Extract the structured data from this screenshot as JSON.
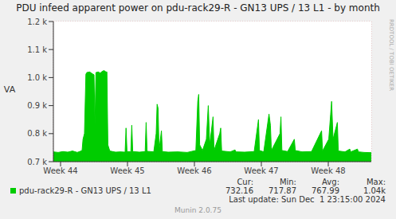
{
  "chart_data": {
    "type": "area",
    "title": "PDU infeed apparent power on pdu-rack29-R - GN13 UPS / 13 L1 - by month",
    "y_label": "VA",
    "x": [
      0,
      0.5,
      1,
      1.5,
      2,
      2.5,
      2.8,
      3.0,
      3.1,
      3.25,
      3.4,
      3.5,
      3.8,
      4.0,
      4.15,
      4.25,
      4.35,
      4.45,
      4.7,
      4.9,
      5.1,
      5.3,
      5.5,
      5.6,
      5.7,
      5.9,
      6.5,
      7,
      7.5,
      7.6,
      7.7,
      8.1,
      8.2,
      8.3,
      9,
      9.6,
      9.7,
      9.8,
      10.5,
      10.75,
      10.85,
      10.95,
      11.05,
      11.3,
      11.4,
      12,
      13,
      14,
      14.9,
      15.1,
      15.2,
      15.3,
      15.6,
      16.0,
      16.2,
      16.35,
      16.7,
      16.8,
      17.4,
      17.5,
      17.6,
      18.5,
      19.0,
      19.1,
      20,
      21,
      21.45,
      21.55,
      22,
      22.55,
      22.7,
      22.8,
      23.7,
      23.8,
      23.9,
      24.5,
      25.2,
      25.3,
      26,
      27,
      28.05,
      28.15,
      28.8,
      29.0,
      29.1,
      29.25,
      29.7,
      29.8,
      30.5,
      31,
      31.1,
      31.8,
      31.9,
      32.5,
      33.25
    ],
    "series": [
      {
        "name": "pdu-rack29-R - GN13 UPS / 13 L1",
        "color": "#00cc00",
        "values": [
          735,
          733,
          736,
          734,
          738,
          733,
          737,
          740,
          780,
          800,
          1012,
          1018,
          1020,
          1015,
          1012,
          1010,
          830,
          1018,
          1020,
          1016,
          1022,
          1025,
          1020,
          1020,
          760,
          738,
          734,
          735,
          734,
          820,
          736,
          735,
          830,
          736,
          734,
          736,
          840,
          737,
          735,
          800,
          905,
          890,
          740,
          810,
          736,
          734,
          735,
          733,
          740,
          915,
          940,
          760,
          740,
          780,
          900,
          760,
          860,
          740,
          800,
          820,
          738,
          735,
          742,
          735,
          734,
          736,
          850,
          740,
          735,
          870,
          830,
          740,
          800,
          860,
          740,
          736,
          780,
          740,
          735,
          736,
          810,
          738,
          780,
          870,
          915,
          780,
          840,
          738,
          735,
          745,
          735,
          745,
          735,
          733,
          732.16
        ]
      }
    ],
    "xlim": [
      0,
      33.25
    ],
    "xticks": [
      {
        "value": 0.75,
        "label": "Week 44"
      },
      {
        "value": 7.75,
        "label": "Week 45"
      },
      {
        "value": 14.75,
        "label": "Week 46"
      },
      {
        "value": 21.75,
        "label": "Week 47"
      },
      {
        "value": 28.75,
        "label": "Week 48"
      }
    ],
    "ylim": [
      700,
      1200
    ],
    "yticks": [
      {
        "value": 700,
        "label": "0.7 k"
      },
      {
        "value": 800,
        "label": "0.8 k"
      },
      {
        "value": 900,
        "label": "0.9 k"
      },
      {
        "value": 1000,
        "label": "1.0 k"
      },
      {
        "value": 1100,
        "label": "1.1 k"
      },
      {
        "value": 1200,
        "label": "1.2 k"
      }
    ],
    "grid": true,
    "stats": {
      "labels": [
        "Cur:",
        "Min:",
        "Avg:",
        "Max:"
      ],
      "values": [
        732.16,
        717.87,
        767.99,
        1040
      ],
      "value_labels": [
        "732.16",
        "717.87",
        "767.99",
        "1.04k"
      ]
    },
    "last_update": "Last update: Sun Dec  1 23:15:00 2024",
    "footer": "Munin 2.0.75",
    "watermark": "RRDTOOL / TOBI OETIKER"
  }
}
